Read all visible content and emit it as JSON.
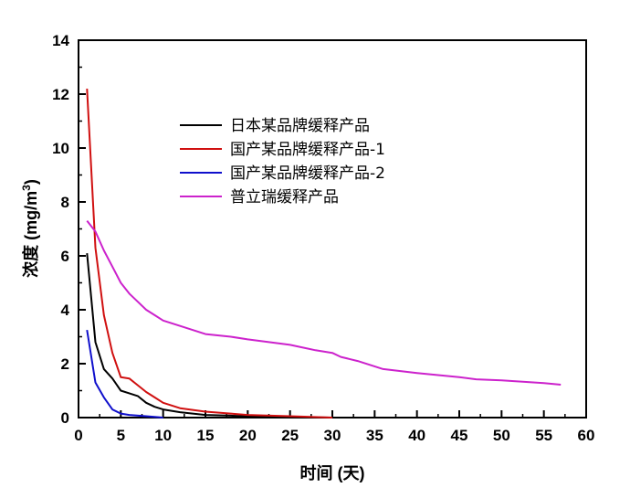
{
  "chart_data": {
    "type": "line",
    "xlabel": "时间 (天)",
    "ylabel": "浓度 (mg/m",
    "ylabel_sup": "3",
    "ylabel_close": ")",
    "xlim": [
      0,
      60
    ],
    "ylim": [
      0,
      14
    ],
    "xticks": [
      0,
      5,
      10,
      15,
      20,
      25,
      30,
      35,
      40,
      45,
      50,
      55,
      60
    ],
    "yticks": [
      0,
      2,
      4,
      6,
      8,
      10,
      12,
      14
    ],
    "legend_position": "top-center",
    "grid": false,
    "series": [
      {
        "name": "日本某品牌缓释产品",
        "color": "#000000",
        "x": [
          1,
          2,
          3,
          4,
          5,
          6,
          7,
          8,
          9,
          10,
          12,
          15,
          18,
          20,
          25,
          30
        ],
        "y": [
          6.1,
          2.8,
          1.8,
          1.45,
          1.0,
          0.9,
          0.8,
          0.55,
          0.4,
          0.3,
          0.2,
          0.1,
          0.07,
          0.05,
          0.02,
          0.0
        ]
      },
      {
        "name": "国产某品牌缓释产品-1",
        "color": "#d01010",
        "x": [
          1,
          2,
          3,
          4,
          5,
          6,
          7,
          8,
          9,
          10,
          12,
          15,
          18,
          20,
          25,
          30
        ],
        "y": [
          12.2,
          6.3,
          3.8,
          2.4,
          1.5,
          1.45,
          1.2,
          0.95,
          0.75,
          0.55,
          0.35,
          0.22,
          0.15,
          0.1,
          0.05,
          0.0
        ]
      },
      {
        "name": "国产某品牌缓释产品-2",
        "color": "#1010cc",
        "x": [
          1,
          2,
          3,
          4,
          5,
          6,
          8,
          10
        ],
        "y": [
          3.25,
          1.3,
          0.75,
          0.3,
          0.15,
          0.1,
          0.05,
          0.0
        ]
      },
      {
        "name": "普立瑞缓释产品",
        "color": "#cc22cc",
        "x": [
          1,
          2,
          3,
          4,
          5,
          6,
          7,
          8,
          9,
          10,
          12,
          15,
          18,
          20,
          25,
          28,
          30,
          31,
          33,
          36,
          40,
          45,
          47,
          50,
          55,
          57
        ],
        "y": [
          7.3,
          6.9,
          6.2,
          5.6,
          5.0,
          4.6,
          4.3,
          4.0,
          3.8,
          3.6,
          3.4,
          3.1,
          3.0,
          2.9,
          2.7,
          2.5,
          2.4,
          2.25,
          2.1,
          1.8,
          1.65,
          1.5,
          1.42,
          1.38,
          1.28,
          1.22
        ]
      }
    ]
  }
}
